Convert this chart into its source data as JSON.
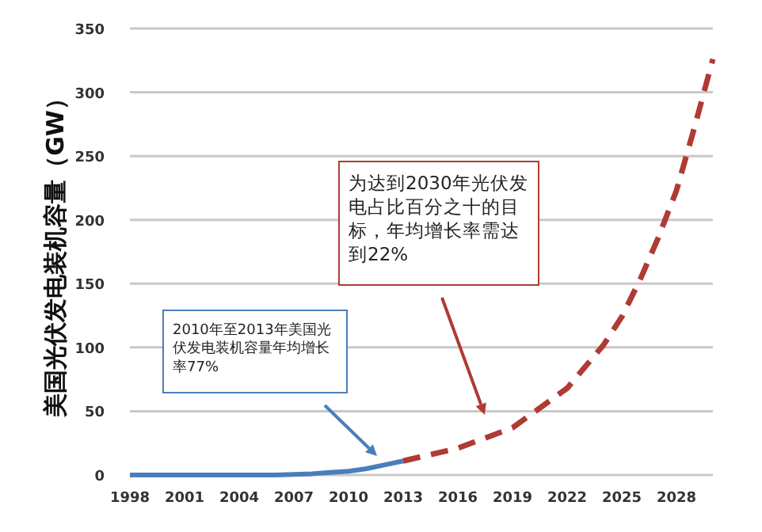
{
  "chart_data": {
    "type": "line",
    "ylabel": "美国光伏发电装机容量（GW）",
    "xlim": [
      1998,
      2030
    ],
    "xticks": [
      1998,
      2001,
      2004,
      2007,
      2010,
      2013,
      2016,
      2019,
      2022,
      2025,
      2028
    ],
    "ylim": [
      0,
      350
    ],
    "yticks": [
      0,
      50,
      100,
      150,
      200,
      250,
      300,
      350
    ],
    "grid": "y",
    "marker": "none",
    "series": [
      {
        "color": "#4a7ebb",
        "line_style": "solid",
        "x": [
          1998,
          2000,
          2002,
          2004,
          2006,
          2008,
          2009,
          2010,
          2011,
          2012,
          2013
        ],
        "values": [
          0,
          0,
          0,
          0,
          0,
          1,
          2,
          3,
          5,
          8,
          11
        ]
      },
      {
        "color": "#b03a34",
        "line_style": "dashed",
        "x": [
          2013,
          2016,
          2019,
          2022,
          2024,
          2025,
          2026,
          2027,
          2028,
          2029,
          2030
        ],
        "values": [
          11,
          21,
          37,
          68,
          102,
          124,
          153,
          186,
          223,
          273,
          326
        ]
      }
    ],
    "annotations": [
      "2010年至2013年美国光伏发电装机容量年均增长率77%",
      "为达到2030年光伏发电占比百分之十的目标，年均增长率需达到22%"
    ]
  }
}
